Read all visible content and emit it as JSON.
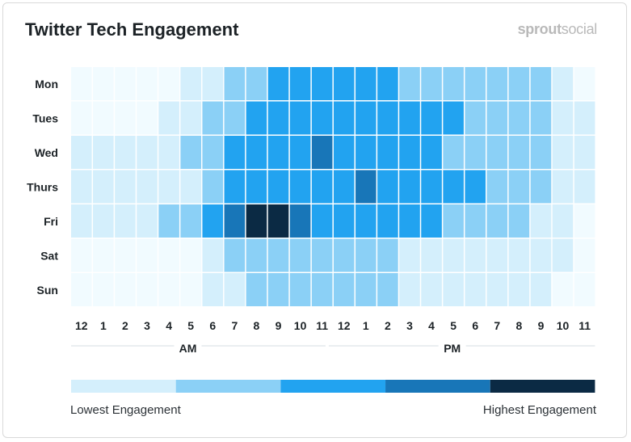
{
  "header": {
    "title": "Twitter Tech Engagement",
    "brand_bold": "sprout",
    "brand_light": "social"
  },
  "colors": {
    "level_0": "#f1fbff",
    "level_1": "#d4effc",
    "level_2": "#8bd0f6",
    "level_3": "#22a3f0",
    "level_4": "#1876b8",
    "level_5": "#0b2a44",
    "label": "#1c2226",
    "divider": "#d6dee3"
  },
  "legend": {
    "low_label": "Lowest Engagement",
    "high_label": "Highest Engagement"
  },
  "chart_data": {
    "type": "heatmap",
    "title": "Twitter Tech Engagement",
    "rows": [
      "Mon",
      "Tues",
      "Wed",
      "Thurs",
      "Fri",
      "Sat",
      "Sun"
    ],
    "columns": [
      "12",
      "1",
      "2",
      "3",
      "4",
      "5",
      "6",
      "7",
      "8",
      "9",
      "10",
      "11",
      "12",
      "1",
      "2",
      "3",
      "4",
      "5",
      "6",
      "7",
      "8",
      "9",
      "10",
      "11"
    ],
    "period_labels": [
      "AM",
      "PM"
    ],
    "scale_min_label": "Lowest Engagement",
    "scale_max_label": "Highest Engagement",
    "scale_levels": [
      1,
      2,
      3,
      4,
      5
    ],
    "values": [
      [
        0,
        0,
        0,
        0,
        0,
        1,
        1,
        2,
        2,
        3,
        3,
        3,
        3,
        3,
        3,
        2,
        2,
        2,
        2,
        2,
        2,
        2,
        1,
        0
      ],
      [
        0,
        0,
        0,
        0,
        1,
        1,
        2,
        2,
        3,
        3,
        3,
        3,
        3,
        3,
        3,
        3,
        3,
        3,
        2,
        2,
        2,
        2,
        1,
        1
      ],
      [
        1,
        1,
        1,
        1,
        1,
        2,
        2,
        3,
        3,
        3,
        3,
        4,
        3,
        3,
        3,
        3,
        3,
        2,
        2,
        2,
        2,
        2,
        1,
        1
      ],
      [
        1,
        1,
        1,
        1,
        1,
        1,
        2,
        3,
        3,
        3,
        3,
        3,
        3,
        4,
        3,
        3,
        3,
        3,
        3,
        2,
        2,
        2,
        1,
        1
      ],
      [
        1,
        1,
        1,
        1,
        2,
        2,
        3,
        4,
        5,
        5,
        4,
        3,
        3,
        3,
        3,
        3,
        3,
        2,
        2,
        2,
        2,
        1,
        1,
        0
      ],
      [
        0,
        0,
        0,
        0,
        0,
        0,
        1,
        2,
        2,
        2,
        2,
        2,
        2,
        2,
        2,
        1,
        1,
        1,
        1,
        1,
        1,
        1,
        1,
        0
      ],
      [
        0,
        0,
        0,
        0,
        0,
        0,
        1,
        1,
        2,
        2,
        2,
        2,
        2,
        2,
        2,
        1,
        1,
        1,
        1,
        1,
        1,
        1,
        0,
        0
      ]
    ]
  }
}
